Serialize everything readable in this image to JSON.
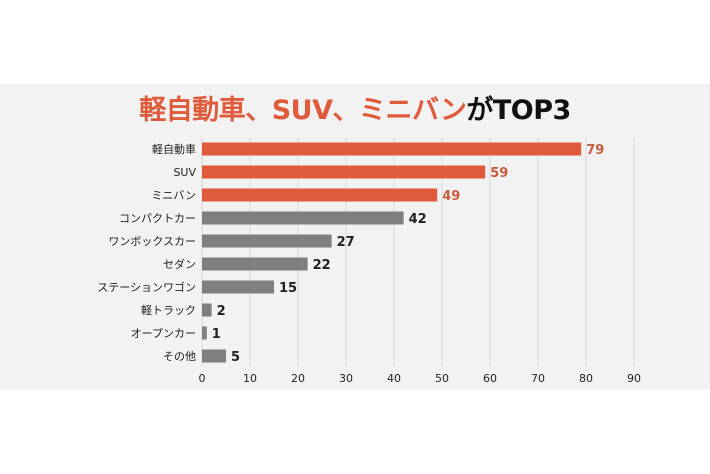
{
  "title": {
    "highlight": "軽自動車、SUV、ミニバン",
    "rest": "がTOP3"
  },
  "colors": {
    "highlight": "#e05a3c",
    "bar_top": "#e05a3c",
    "bar_other": "#7f7f7f",
    "label_top": "#c85a40",
    "label_other": "#222222",
    "grid": "#d6d6d6"
  },
  "chart_data": {
    "type": "bar",
    "orientation": "horizontal",
    "categories": [
      "軽自動車",
      "SUV",
      "ミニバン",
      "コンパクトカー",
      "ワンボックスカー",
      "セダン",
      "ステーションワゴン",
      "軽トラック",
      "オープンカー",
      "その他"
    ],
    "values": [
      79,
      59,
      49,
      42,
      27,
      22,
      15,
      2,
      1,
      5
    ],
    "highlight_count": 3,
    "xlim": [
      0,
      90
    ],
    "xticks": [
      0,
      10,
      20,
      30,
      40,
      50,
      60,
      70,
      80,
      90
    ],
    "grid": true,
    "data_labels": true
  }
}
